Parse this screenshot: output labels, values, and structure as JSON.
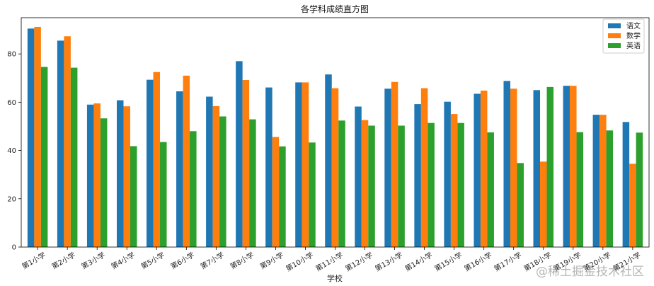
{
  "chart_data": {
    "type": "bar",
    "title": "各学科成绩直方图",
    "xlabel": "学校",
    "ylabel": "",
    "ylim": [
      0,
      95
    ],
    "yticks": [
      0,
      20,
      40,
      60,
      80
    ],
    "grid": false,
    "legend_position": "top-right",
    "categories": [
      "第1小学",
      "第2小学",
      "第3小学",
      "第4小学",
      "第5小学",
      "第6小学",
      "第7小学",
      "第8小学",
      "第9小学",
      "第10小学",
      "第11小学",
      "第12小学",
      "第13小学",
      "第14小学",
      "第15小学",
      "第16小学",
      "第17小学",
      "第18小学",
      "第19小学",
      "第20小学",
      "第21小学"
    ],
    "series": [
      {
        "name": "语文",
        "color": "#1f77b4",
        "values": [
          90.5,
          85.5,
          59,
          60.8,
          69.3,
          64.5,
          62.3,
          77,
          66.1,
          68.2,
          71.5,
          58.2,
          65.6,
          59.2,
          60.2,
          63.5,
          68.8,
          65,
          66.8,
          54.8,
          51.8
        ]
      },
      {
        "name": "数学",
        "color": "#ff7f0e",
        "values": [
          91.2,
          87.3,
          59.5,
          58.3,
          72.5,
          71,
          58.4,
          69.2,
          45.6,
          68.2,
          65.8,
          52.6,
          68.4,
          65.8,
          55.1,
          64.8,
          65.6,
          35.4,
          66.8,
          54.8,
          34.5
        ]
      },
      {
        "name": "英语",
        "color": "#2ca02c",
        "values": [
          74.6,
          74.3,
          53.3,
          41.8,
          43.5,
          48,
          54.1,
          52.9,
          41.7,
          43.3,
          52.4,
          50.3,
          50.3,
          51.4,
          51.4,
          47.5,
          34.8,
          66.3,
          47.6,
          48.3,
          47.4
        ]
      }
    ]
  },
  "watermark": "@稀土掘金技术社区"
}
